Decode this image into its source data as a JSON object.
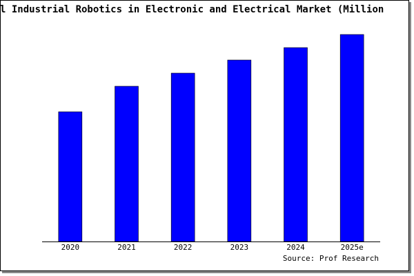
{
  "chart_data": {
    "type": "bar",
    "title": "l Industrial Robotics in Electronic and Electrical Market (Million",
    "categories": [
      "2020",
      "2021",
      "2022",
      "2023",
      "2024",
      "2025e"
    ],
    "values": [
      188,
      225,
      244,
      263,
      281,
      300
    ],
    "color": "#0000ff",
    "source": "Source: Prof Research"
  }
}
